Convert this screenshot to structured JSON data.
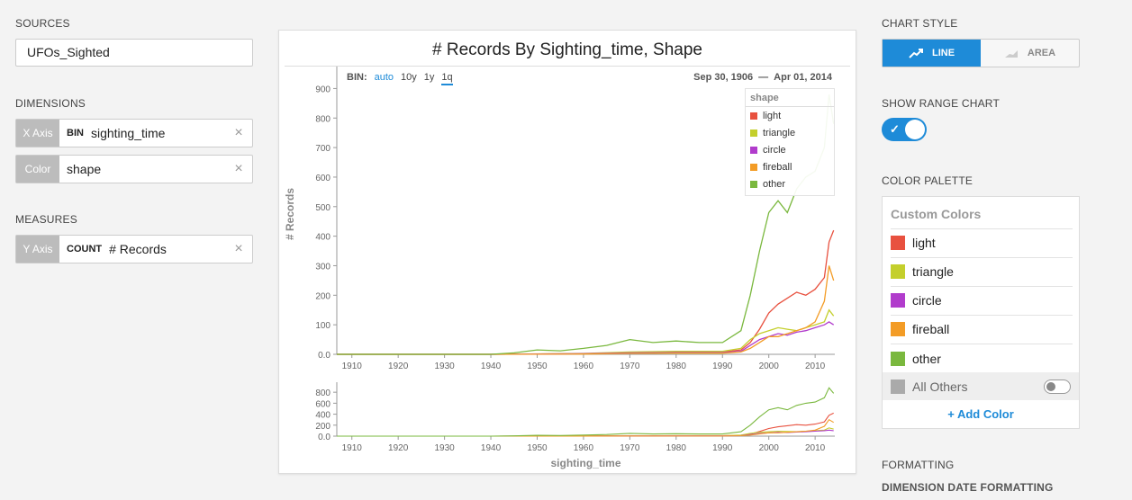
{
  "left": {
    "sources_label": "SOURCES",
    "source_value": "UFOs_Sighted",
    "dimensions_label": "DIMENSIONS",
    "x_axis": {
      "tag": "X Axis",
      "agg": "BIN",
      "field": "sighting_time"
    },
    "color": {
      "tag": "Color",
      "field": "shape"
    },
    "measures_label": "MEASURES",
    "y_axis": {
      "tag": "Y Axis",
      "agg": "COUNT",
      "field": "# Records"
    },
    "remove_glyph": "×"
  },
  "card": {
    "title": "# Records By Sighting_time, Shape",
    "bin_label": "BIN:",
    "bin_options": [
      "auto",
      "10y",
      "1y",
      "1q"
    ],
    "date_start": "Sep 30, 1906",
    "date_sep": "—",
    "date_end": "Apr 01, 2014"
  },
  "legend": {
    "title": "shape",
    "items": [
      {
        "name": "light",
        "color": "#e8513f"
      },
      {
        "name": "triangle",
        "color": "#c4cf2c"
      },
      {
        "name": "circle",
        "color": "#b13ccc"
      },
      {
        "name": "fireball",
        "color": "#f39c26"
      },
      {
        "name": "other",
        "color": "#7ab83e"
      }
    ]
  },
  "chart_data": {
    "type": "line",
    "xlabel": "sighting_time",
    "ylabel": "# Records",
    "x_ticks": [
      "1910",
      "1920",
      "1930",
      "1940",
      "1950",
      "1960",
      "1970",
      "1980",
      "1990",
      "2000",
      "2010"
    ],
    "y_ticks": [
      "0.0",
      "100",
      "200",
      "300",
      "400",
      "500",
      "600",
      "700",
      "800",
      "900"
    ],
    "range_y_ticks": [
      "0.0",
      "200",
      "400",
      "600",
      "800"
    ],
    "xlim": [
      1906.75,
      2014.25
    ],
    "ylim": [
      0,
      950
    ],
    "range_ylim": [
      0,
      950
    ],
    "series": [
      {
        "name": "light",
        "color": "#e8513f",
        "x": [
          1906.75,
          1940,
          1960,
          1970,
          1980,
          1990,
          1994,
          1996,
          1998,
          2000,
          2002,
          2004,
          2006,
          2008,
          2010,
          2012,
          2013,
          2014
        ],
        "y": [
          0,
          0,
          2,
          5,
          8,
          8,
          15,
          40,
          85,
          140,
          170,
          190,
          210,
          200,
          220,
          260,
          380,
          420
        ]
      },
      {
        "name": "triangle",
        "color": "#c4cf2c",
        "x": [
          1906.75,
          1940,
          1960,
          1970,
          1980,
          1990,
          1994,
          1996,
          1998,
          2000,
          2002,
          2004,
          2006,
          2008,
          2010,
          2012,
          2013,
          2014
        ],
        "y": [
          0,
          0,
          3,
          8,
          10,
          10,
          20,
          50,
          70,
          80,
          90,
          85,
          80,
          90,
          100,
          110,
          150,
          130
        ]
      },
      {
        "name": "circle",
        "color": "#b13ccc",
        "x": [
          1906.75,
          1940,
          1960,
          1970,
          1980,
          1990,
          1994,
          1996,
          1998,
          2000,
          2002,
          2004,
          2006,
          2008,
          2010,
          2012,
          2013,
          2014
        ],
        "y": [
          0,
          0,
          2,
          5,
          6,
          6,
          10,
          30,
          50,
          60,
          70,
          65,
          75,
          80,
          90,
          100,
          110,
          100
        ]
      },
      {
        "name": "fireball",
        "color": "#f39c26",
        "x": [
          1906.75,
          1940,
          1960,
          1970,
          1980,
          1990,
          1994,
          1996,
          1998,
          2000,
          2002,
          2004,
          2006,
          2008,
          2010,
          2012,
          2013,
          2014
        ],
        "y": [
          0,
          0,
          1,
          3,
          4,
          4,
          8,
          20,
          40,
          60,
          60,
          70,
          80,
          90,
          110,
          180,
          300,
          250
        ]
      },
      {
        "name": "other",
        "color": "#7ab83e",
        "x": [
          1906.75,
          1940,
          1945,
          1950,
          1955,
          1960,
          1965,
          1970,
          1975,
          1980,
          1985,
          1990,
          1994,
          1996,
          1998,
          2000,
          2002,
          2004,
          2006,
          2008,
          2010,
          2012,
          2013,
          2014
        ],
        "y": [
          0,
          0,
          5,
          15,
          12,
          20,
          30,
          50,
          40,
          45,
          40,
          40,
          80,
          200,
          350,
          480,
          520,
          480,
          560,
          600,
          620,
          700,
          880,
          780
        ]
      }
    ]
  },
  "right": {
    "chart_style_label": "CHART STYLE",
    "line_label": "LINE",
    "area_label": "AREA",
    "range_label": "SHOW RANGE CHART",
    "palette_label": "COLOR PALETTE",
    "custom_colors": "Custom Colors",
    "colors": [
      {
        "name": "light",
        "color": "#e8513f"
      },
      {
        "name": "triangle",
        "color": "#c4cf2c"
      },
      {
        "name": "circle",
        "color": "#b13ccc"
      },
      {
        "name": "fireball",
        "color": "#f39c26"
      },
      {
        "name": "other",
        "color": "#7ab83e"
      }
    ],
    "all_others": "All Others",
    "add_color": "+ Add Color",
    "formatting_label": "FORMATTING",
    "date_formatting_label": "DIMENSION DATE FORMATTING"
  }
}
